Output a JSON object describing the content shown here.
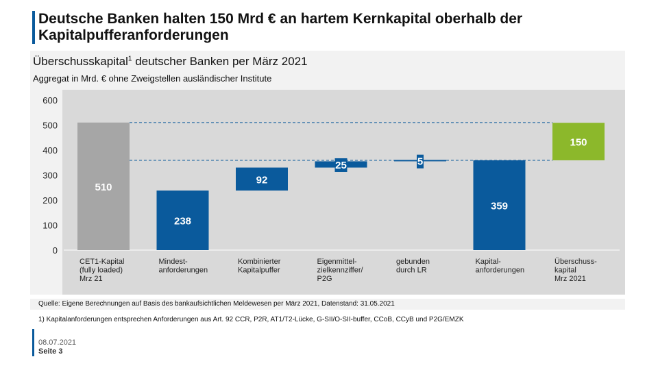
{
  "title": "Deutsche Banken halten 150 Mrd € an hartem Kernkapital oberhalb der Kapitalpufferanforderungen",
  "subtitle_main": "Überschusskapital",
  "subtitle_sup": "1",
  "subtitle_rest": " deutscher Banken per März 2021",
  "subnote": "Aggregat in Mrd. € ohne Zweigstellen ausländischer Institute",
  "source": "Quelle: Eigene Berechnungen auf Basis des bankaufsichtlichen Meldewesen per März 2021, Datenstand: 31.05.2021",
  "footnote": "1) Kapitalanforderungen entsprechen Anforderungen aus Art. 92 CCR, P2R, AT1/T2-Lücke, G-SII/O-SII-buffer, CCoB, CCyB und P2G/EMZK",
  "date": "08.07.2021",
  "page": "Seite 3",
  "colors": {
    "gray": "#a6a6a6",
    "blue": "#0a5a9c",
    "green": "#8cb82b",
    "accent": "#0a5a9c"
  },
  "chart_data": {
    "type": "bar",
    "subtype": "waterfall",
    "ylim": [
      0,
      600
    ],
    "yticks": [
      0,
      100,
      200,
      300,
      400,
      500,
      600
    ],
    "categories": [
      [
        "CET1-Kapital",
        "(fully loaded)",
        "Mrz 21"
      ],
      [
        "Mindest-",
        "anforderungen"
      ],
      [
        "Kombinierter",
        "Kapitalpuffer"
      ],
      [
        "Eigenmittel-",
        "zielkennziffer/",
        "P2G"
      ],
      [
        "gebunden",
        "durch LR"
      ],
      [
        "Kapital-",
        "anforderungen"
      ],
      [
        "Überschuss-",
        "kapital",
        "Mrz 2021"
      ]
    ],
    "bars": [
      {
        "label": "510",
        "value": 510,
        "bottom": 0,
        "top": 510,
        "color": "gray"
      },
      {
        "label": "238",
        "value": 238,
        "bottom": 0,
        "top": 238,
        "color": "blue"
      },
      {
        "label": "92",
        "value": 92,
        "bottom": 238,
        "top": 330,
        "color": "blue"
      },
      {
        "label": "25",
        "value": 25,
        "bottom": 330,
        "top": 355,
        "color": "blue"
      },
      {
        "label": "5",
        "value": 5,
        "bottom": 355,
        "top": 359,
        "color": "blue"
      },
      {
        "label": "359",
        "value": 359,
        "bottom": 0,
        "top": 359,
        "color": "blue"
      },
      {
        "label": "150",
        "value": 150,
        "bottom": 359,
        "top": 509,
        "color": "green"
      }
    ],
    "reference_lines": [
      510,
      359
    ]
  }
}
